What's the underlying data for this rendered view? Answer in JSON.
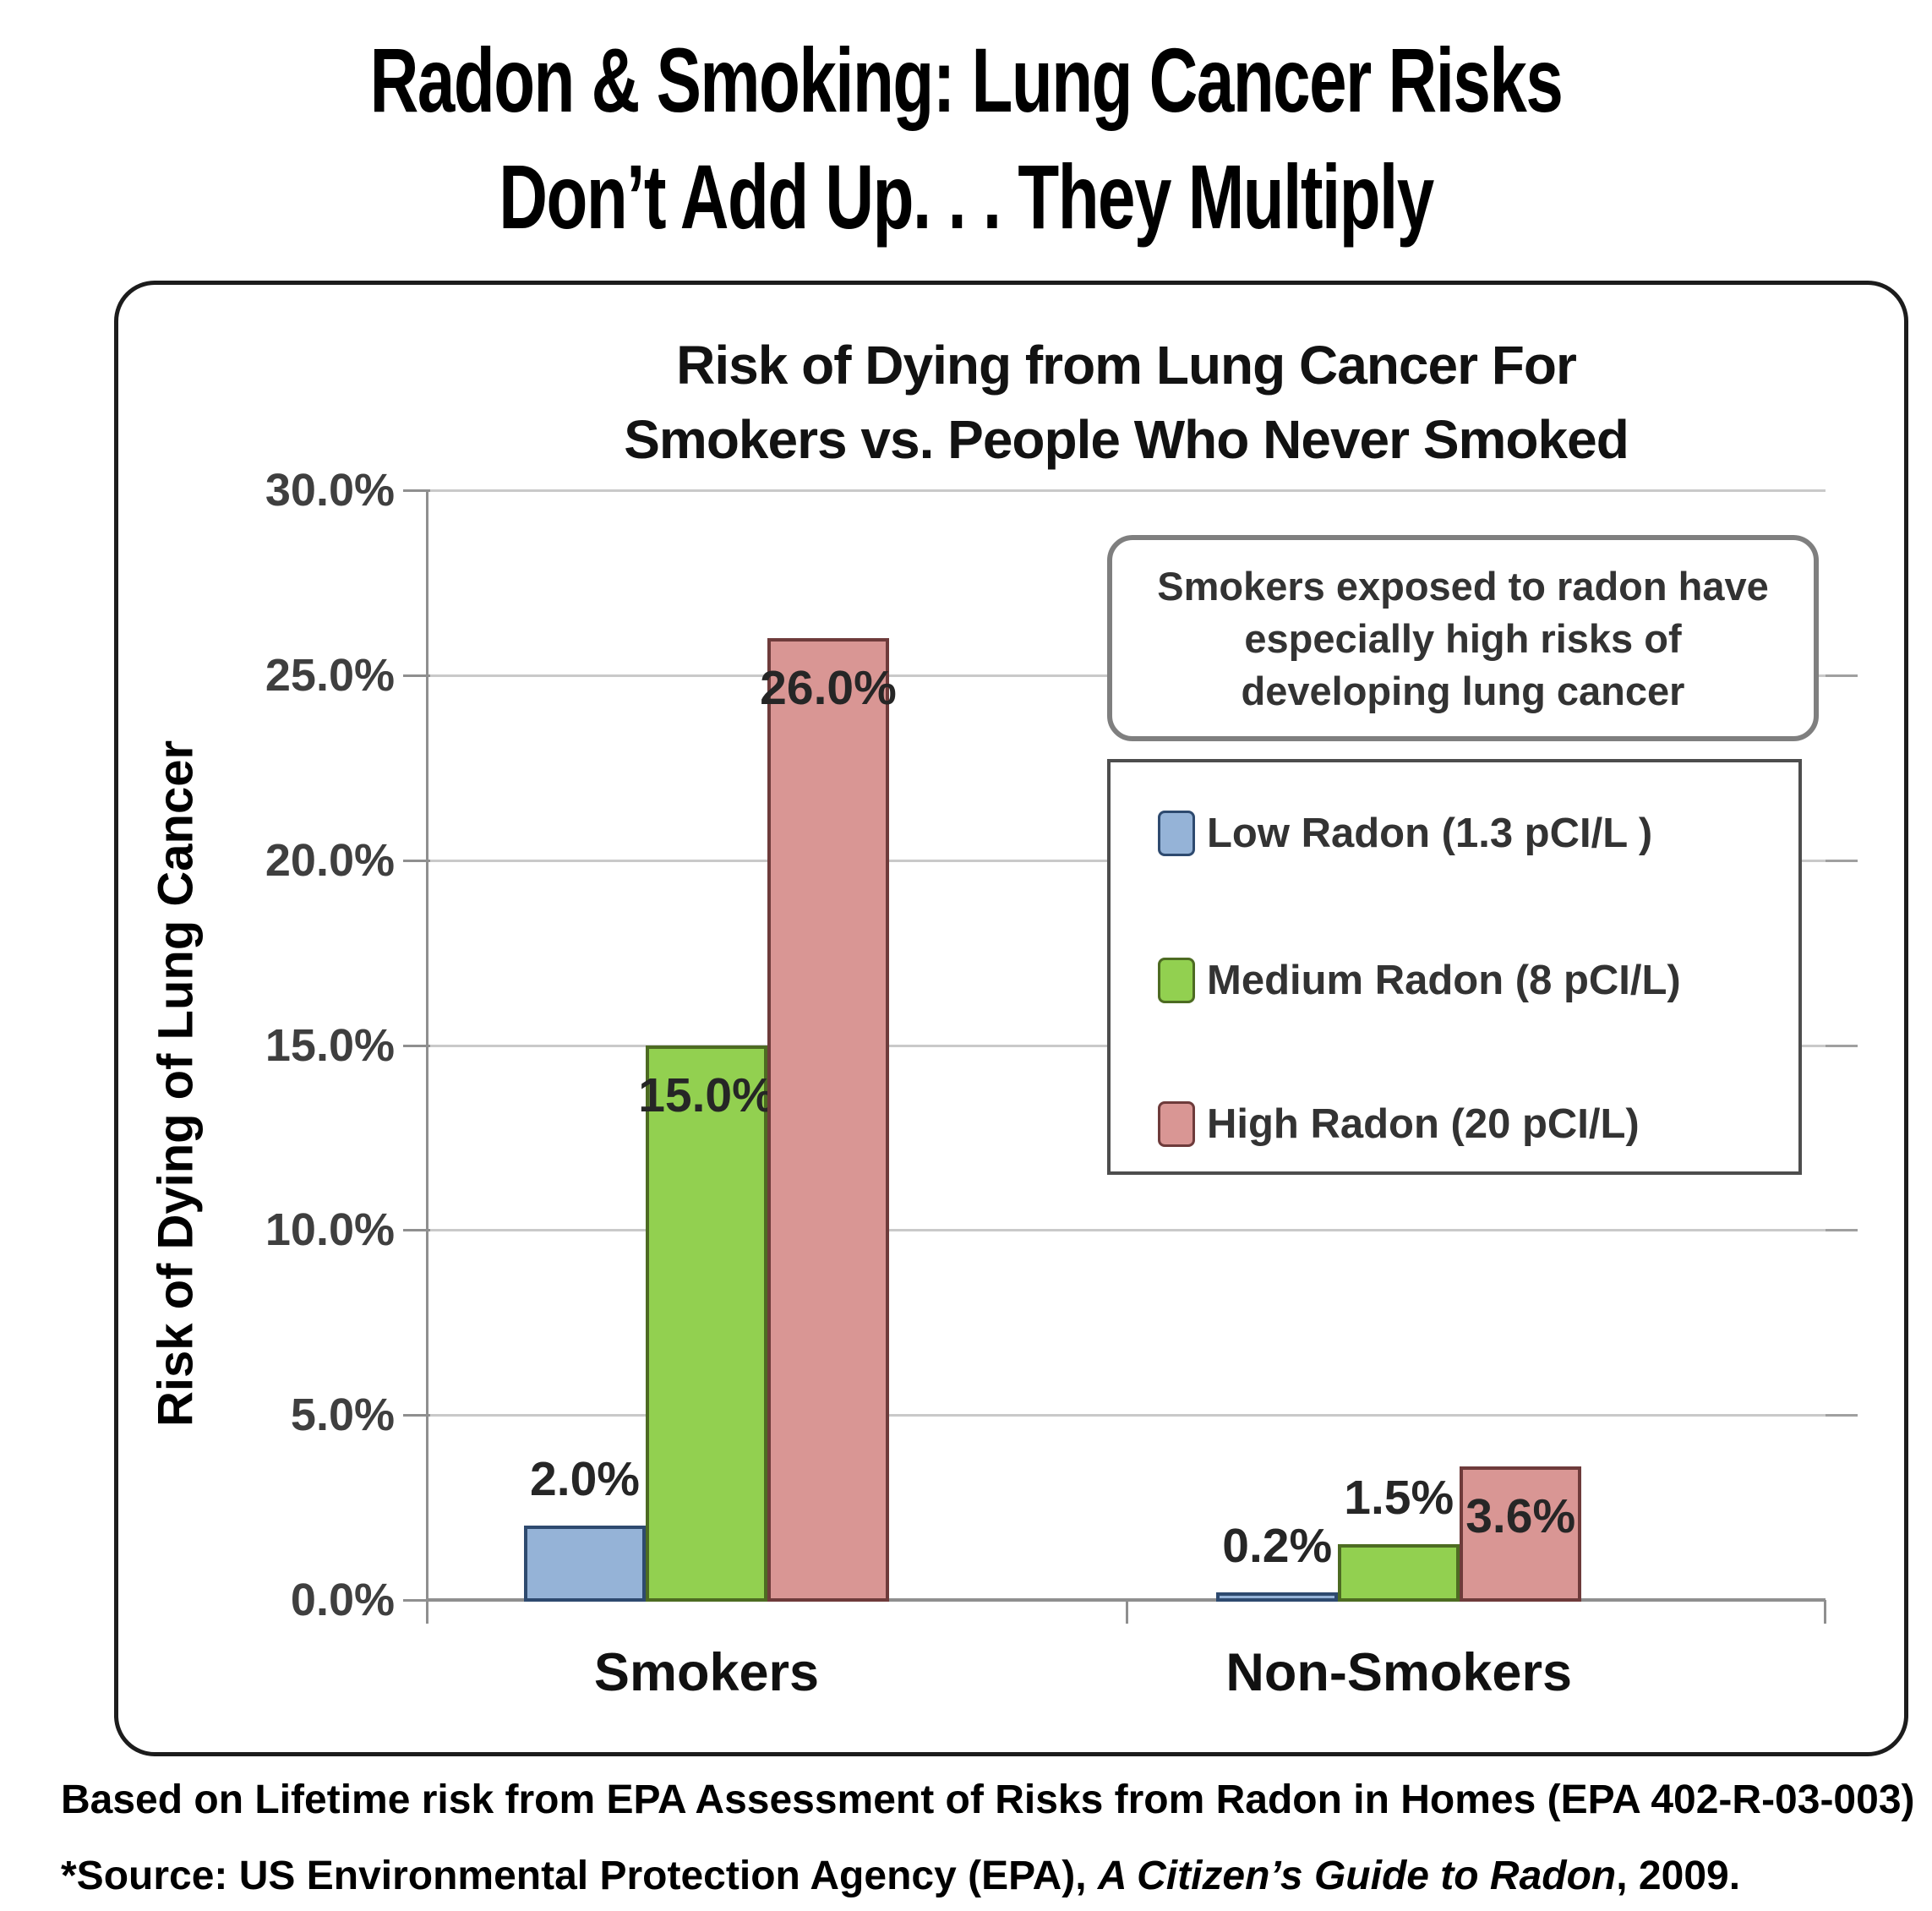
{
  "page_title": {
    "line1": "Radon & Smoking: Lung Cancer Risks",
    "line2": "Don’t Add Up. . .  They Multiply"
  },
  "chart_data": {
    "type": "bar",
    "title_line1": "Risk of Dying from Lung Cancer For",
    "title_line2": "Smokers vs. People Who Never Smoked",
    "ylabel": "Risk of Dying of Lung Cancer",
    "ylim": [
      0,
      30
    ],
    "ytick_step": 5,
    "ytick_labels": [
      "0.0%",
      "5.0%",
      "10.0%",
      "15.0%",
      "20.0%",
      "25.0%",
      "30.0%"
    ],
    "grid": "horizontal",
    "legend_position": "right-overlay",
    "categories": [
      "Smokers",
      "Non-Smokers"
    ],
    "series": [
      {
        "name": "Low Radon (1.3 pCI/L )",
        "color": "#95B3D7",
        "border": "#2e4a6f",
        "values": [
          2.0,
          0.2
        ],
        "labels": [
          "2.0%",
          "0.2%"
        ]
      },
      {
        "name": "Medium Radon (8 pCI/L)",
        "color": "#92D050",
        "border": "#4d6b22",
        "values": [
          15.0,
          1.5
        ],
        "labels": [
          "15.0%",
          "1.5%"
        ]
      },
      {
        "name": "High Radon (20 pCI/L)",
        "color": "#D99694",
        "border": "#6e3b3b",
        "values": [
          26.0,
          3.6
        ],
        "labels": [
          "26.0%",
          "3.6%"
        ]
      }
    ],
    "labels_inside": [
      [
        false,
        false
      ],
      [
        true,
        false
      ],
      [
        true,
        true
      ]
    ],
    "annotation": {
      "line1": "Smokers exposed to radon have",
      "line2": "especially high risks of",
      "line3": "developing lung cancer"
    }
  },
  "footer": {
    "line1": "Based on Lifetime risk from EPA Assessment of Risks from Radon in Homes (EPA 402-R-03-003)",
    "line2_prefix": "*Source: US Environmental Protection Agency (EPA), ",
    "line2_italic": "A Citizen’s Guide to Radon",
    "line2_suffix": ", 2009."
  },
  "colors": {
    "gridline": "#c9c9c9",
    "axis": "#8f8f8f",
    "tick_label": "#3f3f3f",
    "text": "#000000",
    "annotation_border": "#7f7f7f",
    "legend_border": "#4d4d4d"
  }
}
